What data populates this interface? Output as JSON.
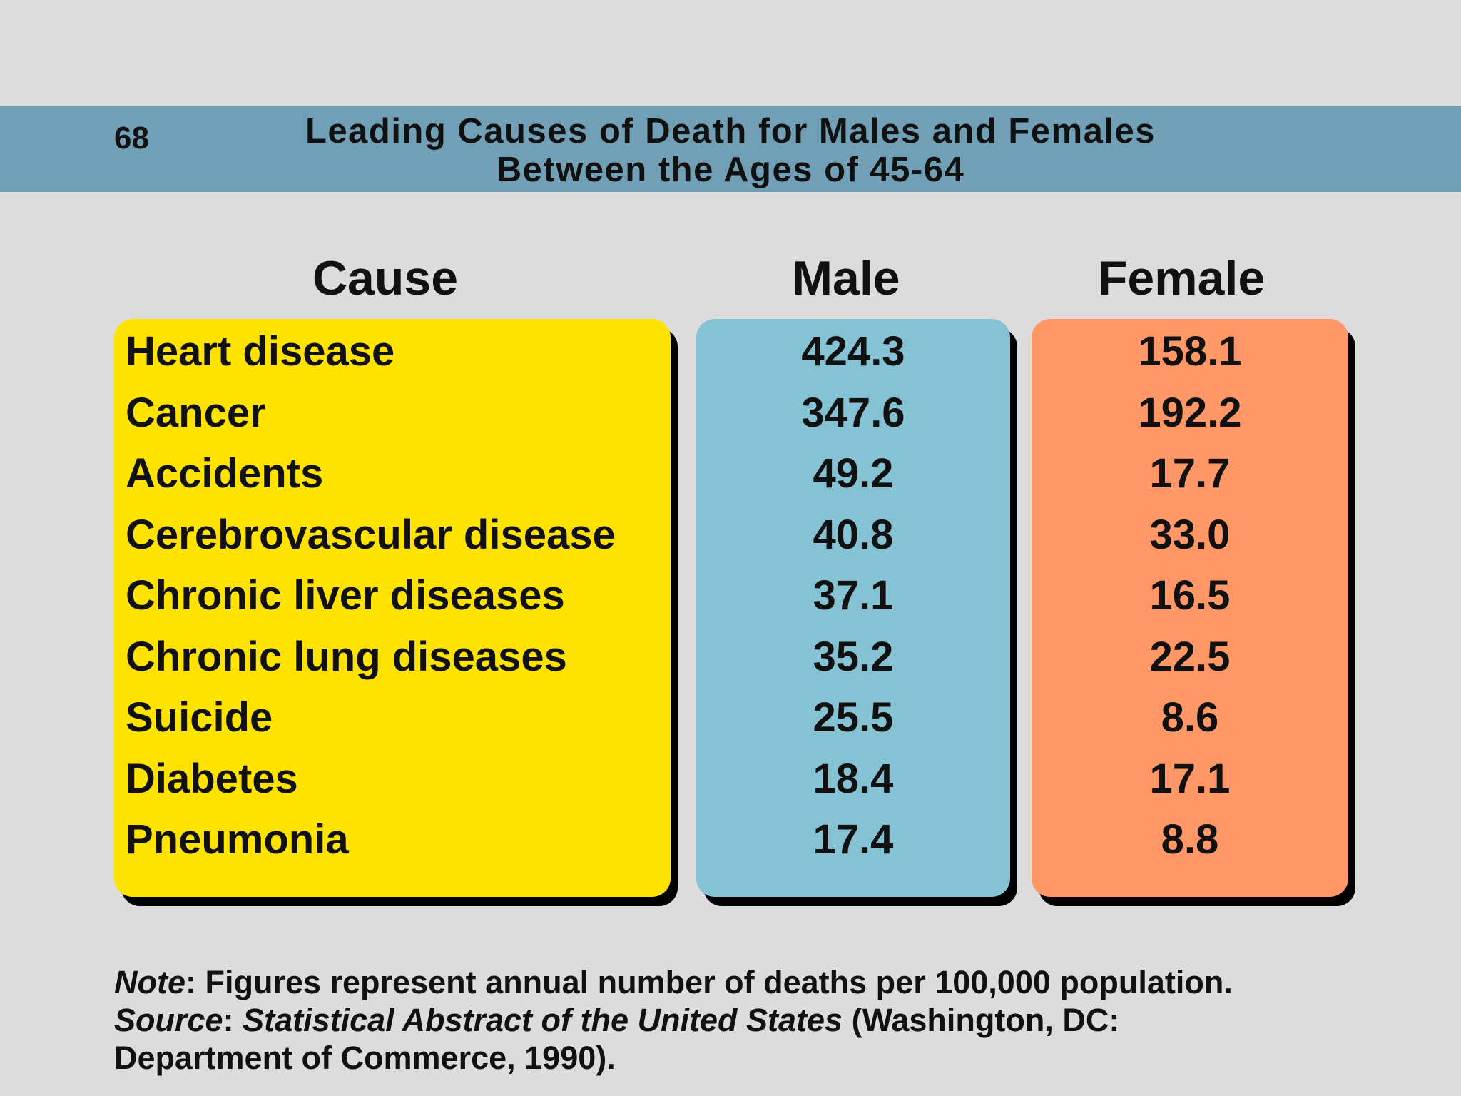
{
  "header": {
    "page_number": "68",
    "title_line1": "Leading Causes of Death for Males and Females",
    "title_line2": "Between the Ages of 45-64",
    "banner_color": "#709fb6"
  },
  "chart_data": {
    "type": "table",
    "columns": [
      "Cause",
      "Male",
      "Female"
    ],
    "rows": [
      {
        "cause": "Heart disease",
        "male": "424.3",
        "female": "158.1"
      },
      {
        "cause": "Cancer",
        "male": "347.6",
        "female": "192.2"
      },
      {
        "cause": "Accidents",
        "male": "49.2",
        "female": "17.7"
      },
      {
        "cause": "Cerebrovascular disease",
        "male": "40.8",
        "female": "33.0"
      },
      {
        "cause": "Chronic liver diseases",
        "male": "37.1",
        "female": "16.5"
      },
      {
        "cause": "Chronic lung diseases",
        "male": "35.2",
        "female": "22.5"
      },
      {
        "cause": "Suicide",
        "male": "25.5",
        "female": "8.6"
      },
      {
        "cause": "Diabetes",
        "male": "18.4",
        "female": "17.1"
      },
      {
        "cause": "Pneumonia",
        "male": "17.4",
        "female": "8.8"
      }
    ],
    "column_colors": {
      "cause": "#ffe300",
      "male": "#85c2d4",
      "female": "#ff9766"
    }
  },
  "notes": {
    "note_label": "Note",
    "note_text": ": Figures represent annual number of deaths per 100,000 population.",
    "source_label": "Source",
    "source_sep": ": ",
    "source_title": "Statistical Abstract of the United States",
    "source_rest_line1": " (Washington, DC:",
    "source_line2": "Department of Commerce, 1990)."
  }
}
